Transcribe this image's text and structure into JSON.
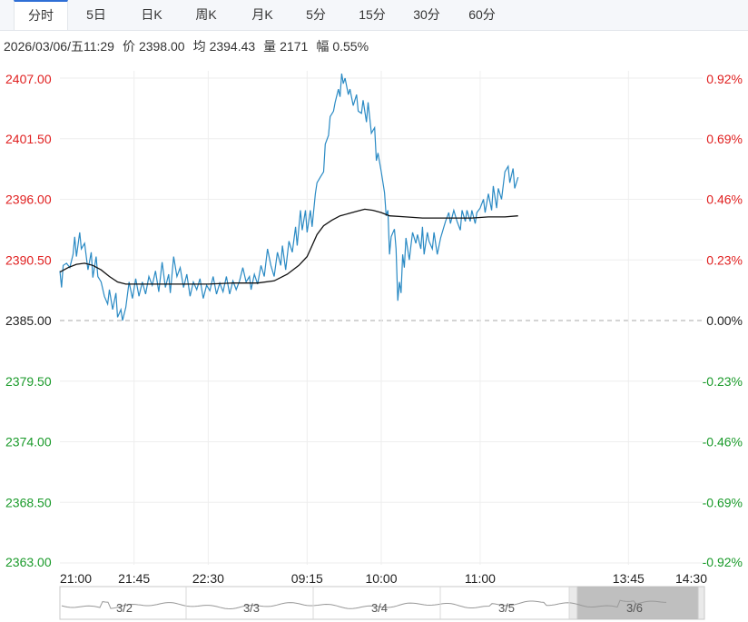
{
  "tabs": [
    {
      "label": "分时",
      "active": true
    },
    {
      "label": "5日",
      "active": false
    },
    {
      "label": "日K",
      "active": false
    },
    {
      "label": "周K",
      "active": false
    },
    {
      "label": "月K",
      "active": false
    },
    {
      "label": "5分",
      "active": false
    },
    {
      "label": "15分",
      "active": false
    },
    {
      "label": "30分",
      "active": false
    },
    {
      "label": "60分",
      "active": false
    }
  ],
  "info": {
    "datetime": "2026/03/06/五11:29",
    "price_label": "价",
    "price": "2398.00",
    "avg_label": "均",
    "avg": "2394.43",
    "volume_label": "量",
    "volume": "2171",
    "amplitude_label": "幅",
    "amplitude": "0.55%"
  },
  "colors": {
    "up": "#e02020",
    "down": "#1a9a2a",
    "price_line": "#2a8ac4",
    "avg_line": "#111111",
    "grid": "#eeeeee",
    "navigator_fill": "#bbbbbb"
  },
  "chart_data": {
    "type": "line",
    "reference_price": 2385.0,
    "ylim": [
      2363.0,
      2407.0
    ],
    "y_ticks_left": [
      "2407.00",
      "2401.50",
      "2396.00",
      "2390.50",
      "2385.00",
      "2379.50",
      "2374.00",
      "2368.50",
      "2363.00"
    ],
    "y_ticks_right": [
      "0.92%",
      "0.69%",
      "0.46%",
      "0.23%",
      "0.00%",
      "-0.23%",
      "-0.46%",
      "-0.69%",
      "-0.92%"
    ],
    "x_ticks": [
      "21:00",
      "21:45",
      "22:30",
      "09:15",
      "10:00",
      "11:00",
      "13:45",
      "14:30"
    ],
    "x_tick_index": [
      0,
      45,
      90,
      150,
      195,
      255,
      345,
      390
    ],
    "total_minutes": 390,
    "series": [
      {
        "key": "price",
        "points": [
          [
            0,
            2389.5
          ],
          [
            1,
            2388.0
          ],
          [
            2,
            2390.0
          ],
          [
            4,
            2390.2
          ],
          [
            6,
            2389.8
          ],
          [
            8,
            2391.0
          ],
          [
            9,
            2392.6
          ],
          [
            10,
            2390.8
          ],
          [
            12,
            2393.0
          ],
          [
            13,
            2391.5
          ],
          [
            15,
            2392.0
          ],
          [
            17,
            2389.6
          ],
          [
            19,
            2391.2
          ],
          [
            20,
            2388.9
          ],
          [
            22,
            2390.8
          ],
          [
            23,
            2389.0
          ],
          [
            25,
            2388.5
          ],
          [
            27,
            2387.2
          ],
          [
            29,
            2386.5
          ],
          [
            30,
            2387.8
          ],
          [
            32,
            2386.0
          ],
          [
            34,
            2387.5
          ],
          [
            35,
            2385.3
          ],
          [
            37,
            2386.0
          ],
          [
            38,
            2385.0
          ],
          [
            40,
            2386.2
          ],
          [
            42,
            2388.5
          ],
          [
            44,
            2387.0
          ],
          [
            46,
            2388.8
          ],
          [
            48,
            2387.2
          ],
          [
            50,
            2388.5
          ],
          [
            52,
            2387.4
          ],
          [
            54,
            2389.0
          ],
          [
            56,
            2388.2
          ],
          [
            58,
            2389.5
          ],
          [
            60,
            2387.6
          ],
          [
            62,
            2390.3
          ],
          [
            64,
            2388.0
          ],
          [
            66,
            2389.2
          ],
          [
            67,
            2387.5
          ],
          [
            69,
            2390.8
          ],
          [
            71,
            2389.0
          ],
          [
            73,
            2389.8
          ],
          [
            75,
            2388.0
          ],
          [
            77,
            2389.2
          ],
          [
            79,
            2387.2
          ],
          [
            81,
            2388.5
          ],
          [
            83,
            2387.8
          ],
          [
            85,
            2388.8
          ],
          [
            87,
            2387.0
          ],
          [
            89,
            2388.2
          ],
          [
            91,
            2387.7
          ],
          [
            93,
            2389.0
          ],
          [
            95,
            2387.4
          ],
          [
            97,
            2388.4
          ],
          [
            99,
            2387.6
          ],
          [
            101,
            2389.0
          ],
          [
            103,
            2387.4
          ],
          [
            105,
            2388.6
          ],
          [
            107,
            2387.8
          ],
          [
            109,
            2388.6
          ],
          [
            111,
            2389.8
          ],
          [
            113,
            2388.5
          ],
          [
            115,
            2389.0
          ],
          [
            116,
            2387.8
          ],
          [
            118,
            2389.2
          ],
          [
            120,
            2388.3
          ],
          [
            122,
            2390.0
          ],
          [
            124,
            2389.0
          ],
          [
            126,
            2391.5
          ],
          [
            128,
            2390.0
          ],
          [
            130,
            2389.0
          ],
          [
            132,
            2391.2
          ],
          [
            134,
            2390.0
          ],
          [
            135,
            2391.8
          ],
          [
            137,
            2389.6
          ],
          [
            139,
            2392.2
          ],
          [
            141,
            2391.2
          ],
          [
            143,
            2393.5
          ],
          [
            144,
            2391.8
          ],
          [
            146,
            2395.0
          ],
          [
            147,
            2393.2
          ],
          [
            149,
            2395.0
          ],
          [
            150,
            2393.0
          ],
          [
            152,
            2395.0
          ],
          [
            153,
            2393.5
          ],
          [
            155,
            2396.5
          ],
          [
            156,
            2397.5
          ],
          [
            158,
            2398.0
          ],
          [
            160,
            2398.5
          ],
          [
            161,
            2401.0
          ],
          [
            163,
            2401.8
          ],
          [
            164,
            2403.5
          ],
          [
            166,
            2404.0
          ],
          [
            167,
            2404.8
          ],
          [
            169,
            2406.0
          ],
          [
            170,
            2405.3
          ],
          [
            171,
            2407.4
          ],
          [
            172,
            2406.5
          ],
          [
            173,
            2407.0
          ],
          [
            175,
            2405.5
          ],
          [
            176,
            2406.0
          ],
          [
            178,
            2404.5
          ],
          [
            180,
            2405.5
          ],
          [
            181,
            2404.0
          ],
          [
            183,
            2403.8
          ],
          [
            184,
            2405.0
          ],
          [
            186,
            2403.0
          ],
          [
            187,
            2404.8
          ],
          [
            189,
            2402.0
          ],
          [
            191,
            2402.5
          ],
          [
            192,
            2399.5
          ],
          [
            193,
            2400.2
          ],
          [
            195,
            2398.5
          ],
          [
            197,
            2396.6
          ],
          [
            198,
            2394.5
          ],
          [
            199,
            2395.0
          ],
          [
            200,
            2391.0
          ],
          [
            201,
            2392.6
          ],
          [
            203,
            2393.3
          ],
          [
            204,
            2391.5
          ],
          [
            205,
            2386.8
          ],
          [
            206,
            2388.5
          ],
          [
            207,
            2387.5
          ],
          [
            208,
            2391.0
          ],
          [
            209,
            2389.8
          ],
          [
            210,
            2392.5
          ],
          [
            212,
            2390.5
          ],
          [
            213,
            2391.8
          ],
          [
            214,
            2393.0
          ],
          [
            216,
            2392.0
          ],
          [
            217,
            2392.8
          ],
          [
            219,
            2391.5
          ],
          [
            220,
            2393.5
          ],
          [
            221,
            2391.0
          ],
          [
            223,
            2393.0
          ],
          [
            224,
            2392.2
          ],
          [
            226,
            2391.5
          ],
          [
            227,
            2393.0
          ],
          [
            229,
            2391.0
          ],
          [
            231,
            2392.5
          ],
          [
            232,
            2393.0
          ],
          [
            234,
            2394.0
          ],
          [
            236,
            2394.8
          ],
          [
            237,
            2393.8
          ],
          [
            239,
            2395.0
          ],
          [
            241,
            2394.0
          ],
          [
            243,
            2393.2
          ],
          [
            244,
            2395.0
          ],
          [
            246,
            2394.0
          ],
          [
            247,
            2395.0
          ],
          [
            249,
            2394.0
          ],
          [
            250,
            2395.0
          ],
          [
            252,
            2393.8
          ],
          [
            253,
            2394.8
          ],
          [
            255,
            2395.2
          ],
          [
            257,
            2396.0
          ],
          [
            258,
            2394.8
          ],
          [
            260,
            2396.5
          ],
          [
            262,
            2395.0
          ],
          [
            263,
            2397.2
          ],
          [
            265,
            2395.2
          ],
          [
            266,
            2397.0
          ],
          [
            268,
            2396.0
          ],
          [
            270,
            2398.5
          ],
          [
            272,
            2399.0
          ],
          [
            273,
            2397.5
          ],
          [
            275,
            2398.8
          ],
          [
            276,
            2397.0
          ],
          [
            278,
            2398.0
          ]
        ]
      },
      {
        "key": "average",
        "points": [
          [
            0,
            2389.4
          ],
          [
            5,
            2389.8
          ],
          [
            10,
            2390.1
          ],
          [
            15,
            2390.2
          ],
          [
            20,
            2390.0
          ],
          [
            25,
            2389.6
          ],
          [
            30,
            2389.0
          ],
          [
            35,
            2388.5
          ],
          [
            40,
            2388.3
          ],
          [
            45,
            2388.3
          ],
          [
            60,
            2388.3
          ],
          [
            75,
            2388.3
          ],
          [
            90,
            2388.3
          ],
          [
            105,
            2388.4
          ],
          [
            120,
            2388.4
          ],
          [
            130,
            2388.6
          ],
          [
            138,
            2389.2
          ],
          [
            145,
            2390.0
          ],
          [
            150,
            2390.8
          ],
          [
            153,
            2391.8
          ],
          [
            156,
            2392.8
          ],
          [
            160,
            2393.6
          ],
          [
            165,
            2394.1
          ],
          [
            170,
            2394.5
          ],
          [
            175,
            2394.7
          ],
          [
            180,
            2394.9
          ],
          [
            185,
            2395.1
          ],
          [
            190,
            2395.0
          ],
          [
            195,
            2394.8
          ],
          [
            200,
            2394.5
          ],
          [
            210,
            2394.4
          ],
          [
            220,
            2394.3
          ],
          [
            230,
            2394.3
          ],
          [
            240,
            2394.3
          ],
          [
            250,
            2394.3
          ],
          [
            260,
            2394.4
          ],
          [
            270,
            2394.4
          ],
          [
            278,
            2394.5
          ]
        ]
      }
    ]
  },
  "navigator": {
    "labels": [
      "3/2",
      "3/3",
      "3/4",
      "3/5",
      "3/6"
    ]
  }
}
